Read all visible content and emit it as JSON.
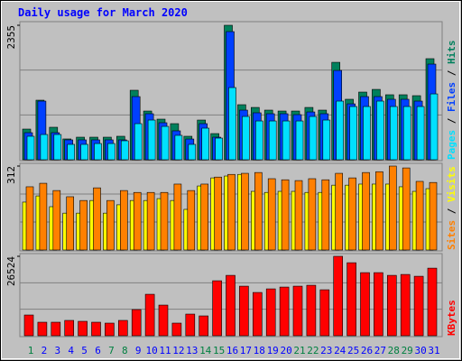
{
  "chart_data": [
    {
      "type": "bar",
      "title": "Daily usage for March 2020",
      "categories": [
        "1",
        "2",
        "3",
        "4",
        "5",
        "6",
        "7",
        "8",
        "9",
        "10",
        "11",
        "12",
        "13",
        "14",
        "15",
        "16",
        "17",
        "18",
        "19",
        "20",
        "21",
        "22",
        "23",
        "24",
        "25",
        "26",
        "27",
        "28",
        "29",
        "30",
        "31"
      ],
      "category_colors": [
        "#008040",
        "#0000ff",
        "#0000ff",
        "#0000ff",
        "#0000ff",
        "#0000ff",
        "#008040",
        "#008040",
        "#0000ff",
        "#0000ff",
        "#0000ff",
        "#0000ff",
        "#0000ff",
        "#008040",
        "#008040",
        "#0000ff",
        "#0000ff",
        "#0000ff",
        "#0000ff",
        "#0000ff",
        "#008040",
        "#008040",
        "#0000ff",
        "#0000ff",
        "#0000ff",
        "#0000ff",
        "#0000ff",
        "#008040",
        "#008040",
        "#0000ff",
        "#0000ff"
      ],
      "ylim": [
        0,
        2355
      ],
      "yticks": [
        2355
      ],
      "series": [
        {
          "name": "Hits",
          "color": "#00805c",
          "values": [
            537,
            1043,
            569,
            364,
            395,
            395,
            395,
            411,
            1217,
            853,
            711,
            632,
            411,
            695,
            458,
            2355,
            964,
            916,
            869,
            853,
            853,
            916,
            869,
            1706,
            1059,
            1185,
            1232,
            1138,
            1138,
            1122,
            1770
          ]
        },
        {
          "name": "Files",
          "color": "#0040ff",
          "values": [
            474,
            1027,
            474,
            348,
            348,
            348,
            348,
            348,
            1106,
            806,
            648,
            506,
            363,
            632,
            395,
            2244,
            869,
            822,
            806,
            806,
            790,
            837,
            806,
            1564,
            979,
            1106,
            1106,
            1059,
            1059,
            1027,
            1675
          ]
        },
        {
          "name": "Pages",
          "color": "#00e0ff",
          "values": [
            411,
            442,
            442,
            269,
            269,
            284,
            284,
            332,
            632,
            695,
            584,
            427,
            269,
            553,
            379,
            1264,
            758,
            679,
            679,
            679,
            679,
            758,
            695,
            1027,
            932,
            932,
            1027,
            932,
            932,
            932,
            1153
          ]
        }
      ]
    },
    {
      "type": "bar",
      "ylim": [
        0,
        312
      ],
      "yticks": [
        312
      ],
      "series": [
        {
          "name": "Visits",
          "color": "#ffff00",
          "values": [
            178,
            201,
            161,
            137,
            137,
            184,
            137,
            168,
            184,
            184,
            191,
            184,
            151,
            238,
            268,
            275,
            281,
            218,
            214,
            218,
            218,
            214,
            214,
            241,
            241,
            245,
            245,
            245,
            235,
            218,
            228
          ]
        },
        {
          "name": "Sites",
          "color": "#ff8000",
          "values": [
            235,
            248,
            221,
            198,
            184,
            231,
            184,
            221,
            214,
            214,
            214,
            245,
            221,
            245,
            271,
            281,
            285,
            288,
            265,
            261,
            258,
            265,
            261,
            285,
            268,
            288,
            291,
            312,
            305,
            255,
            251
          ]
        }
      ]
    },
    {
      "type": "bar",
      "ylim": [
        0,
        26524
      ],
      "yticks": [
        26524
      ],
      "series": [
        {
          "name": "KBytes",
          "color": "#ff0000",
          "values": [
            6923,
            4515,
            4515,
            5117,
            4816,
            4515,
            4214,
            5117,
            8729,
            13846,
            10234,
            4214,
            7224,
            6622,
            18361,
            20167,
            16555,
            14448,
            15652,
            16254,
            16555,
            16856,
            15351,
            26524,
            24381,
            21070,
            21070,
            20167,
            20468,
            19866,
            22575
          ]
        }
      ]
    }
  ]
}
